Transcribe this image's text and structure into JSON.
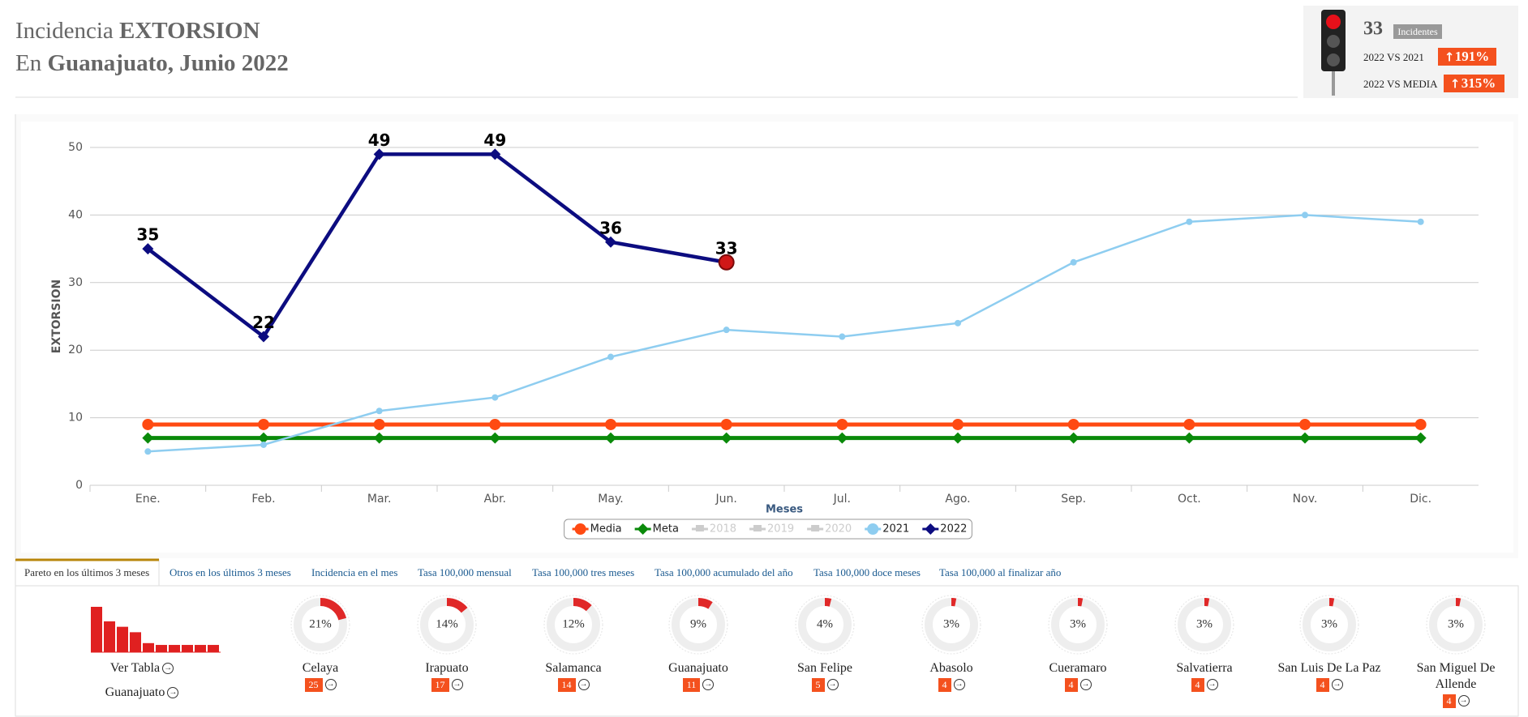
{
  "header": {
    "title_prefix": "Incidencia",
    "title_bold": "EXTORSION",
    "subtitle_prefix": "En",
    "subtitle_bold": "Guanajuato, Junio 2022"
  },
  "indicator": {
    "count": 33,
    "badge": "Incidentes",
    "rows": [
      {
        "label": "2022 VS 2021",
        "value": "191%"
      },
      {
        "label": "2022 VS MEDIA",
        "value": "315%"
      }
    ]
  },
  "chart_data": {
    "type": "line",
    "y_label": "EXTORSION",
    "x_label": "Meses",
    "categories": [
      "Ene.",
      "Feb.",
      "Mar.",
      "Abr.",
      "May.",
      "Jun.",
      "Jul.",
      "Ago.",
      "Sep.",
      "Oct.",
      "Nov.",
      "Dic."
    ],
    "ylim": [
      0,
      50
    ],
    "yticks": [
      0,
      10,
      20,
      30,
      40,
      50
    ],
    "grid": true,
    "legend": "bottom",
    "series": [
      {
        "name": "Media",
        "color": "#ff4a12",
        "marker": "circle",
        "values": [
          9,
          9,
          9,
          9,
          9,
          9,
          9,
          9,
          9,
          9,
          9,
          9
        ]
      },
      {
        "name": "Meta",
        "color": "#0a8a0a",
        "marker": "diamond",
        "values": [
          7,
          7,
          7,
          7,
          7,
          7,
          7,
          7,
          7,
          7,
          7,
          7
        ]
      },
      {
        "name": "2021",
        "color": "#8ecdf0",
        "marker": "circle",
        "values": [
          5,
          6,
          11,
          13,
          19,
          23,
          22,
          24,
          33,
          39,
          40,
          39
        ]
      },
      {
        "name": "2022",
        "color": "#0c0c80",
        "marker": "diamond",
        "data_labels": true,
        "values": [
          35,
          22,
          49,
          49,
          36,
          33,
          null,
          null,
          null,
          null,
          null,
          null
        ]
      }
    ],
    "hidden_series": [
      "2018",
      "2019",
      "2020"
    ]
  },
  "tabs": [
    "Pareto en los últimos 3 meses",
    "Otros en los últimos 3 meses",
    "Incidencia en el mes",
    "Tasa 100,000 mensual",
    "Tasa 100,000 tres meses",
    "Tasa 100,000 acumulado del año",
    "Tasa 100,000 doce meses",
    "Tasa 100,000 al finalizar año"
  ],
  "pareto": {
    "links": [
      "Ver Tabla",
      "Guanajuato"
    ],
    "items": [
      {
        "name": "Celaya",
        "pct": 21,
        "pct_label": "21%",
        "count": 25
      },
      {
        "name": "Irapuato",
        "pct": 14,
        "pct_label": "14%",
        "count": 17
      },
      {
        "name": "Salamanca",
        "pct": 12,
        "pct_label": "12%",
        "count": 14
      },
      {
        "name": "Guanajuato",
        "pct": 9,
        "pct_label": "9%",
        "count": 11
      },
      {
        "name": "San Felipe",
        "pct": 4,
        "pct_label": "4%",
        "count": 5
      },
      {
        "name": "Abasolo",
        "pct": 3,
        "pct_label": "3%",
        "count": 4
      },
      {
        "name": "Cueramaro",
        "pct": 3,
        "pct_label": "3%",
        "count": 4
      },
      {
        "name": "Salvatierra",
        "pct": 3,
        "pct_label": "3%",
        "count": 4
      },
      {
        "name": "San Luis De La Paz",
        "pct": 3,
        "pct_label": "3%",
        "count": 4
      },
      {
        "name": "San Miguel De Allende",
        "pct": 3,
        "pct_label": "3%",
        "count": 4
      }
    ]
  }
}
